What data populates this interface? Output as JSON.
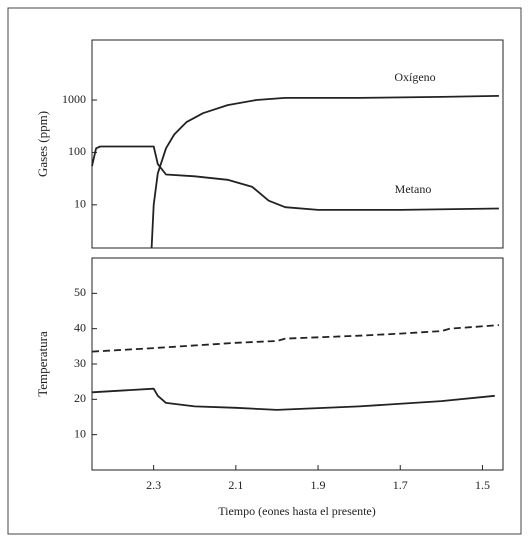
{
  "chart_data": [
    {
      "type": "line",
      "ylabel": "Gases (ppm)",
      "log": true,
      "xlim": [
        2.45,
        1.45
      ],
      "ylim": [
        1.5,
        14000
      ],
      "yticks": [
        10,
        100,
        1000
      ],
      "series": [
        {
          "name": "Oxígeno",
          "color": "#222222",
          "x": [
            2.305,
            2.3,
            2.29,
            2.27,
            2.25,
            2.22,
            2.18,
            2.12,
            2.05,
            1.98,
            1.8,
            1.6,
            1.46
          ],
          "values": [
            1.5,
            10,
            40,
            120,
            220,
            380,
            560,
            800,
            1000,
            1100,
            1100,
            1150,
            1200
          ]
        },
        {
          "name": "Metano",
          "color": "#222222",
          "x": [
            2.45,
            2.44,
            2.43,
            2.3,
            2.29,
            2.27,
            2.2,
            2.12,
            2.06,
            2.02,
            1.98,
            1.9,
            1.7,
            1.46
          ],
          "values": [
            55,
            120,
            130,
            130,
            60,
            38,
            35,
            30,
            22,
            12,
            9,
            8,
            8,
            8.5
          ]
        }
      ]
    },
    {
      "type": "line",
      "ylabel": "Temperatura",
      "xlabel": "Tiempo (eones hasta el presente)",
      "xlim": [
        2.45,
        1.45
      ],
      "xticks": [
        2.3,
        2.1,
        1.9,
        1.7,
        1.5
      ],
      "ylim": [
        0,
        60
      ],
      "yticks": [
        10,
        20,
        30,
        40,
        50
      ],
      "series": [
        {
          "color": "#222222",
          "dashed": true,
          "x": [
            2.45,
            2.3,
            2.1,
            2.0,
            1.98,
            1.8,
            1.7,
            1.6,
            1.58,
            1.46
          ],
          "values": [
            33.5,
            34.5,
            36,
            36.5,
            37.2,
            38,
            38.6,
            39.3,
            40,
            41
          ]
        },
        {
          "color": "#222222",
          "dashed": false,
          "x": [
            2.45,
            2.3,
            2.29,
            2.27,
            2.2,
            2.1,
            2.0,
            1.8,
            1.6,
            1.47
          ],
          "values": [
            22,
            23,
            21,
            19,
            18,
            17.6,
            17,
            18,
            19.5,
            21
          ]
        }
      ]
    }
  ]
}
